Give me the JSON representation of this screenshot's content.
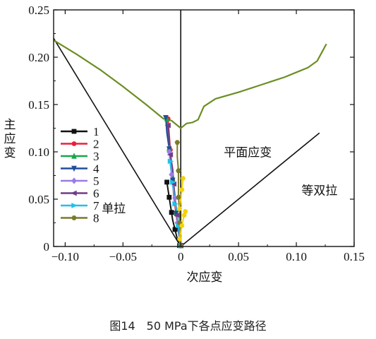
{
  "caption": "图14　50 MPa下各点应变路径",
  "chart_data": {
    "type": "line",
    "xlabel": "次应变",
    "ylabel": "主应变",
    "xlim": [
      -0.11,
      0.15
    ],
    "ylim": [
      0,
      0.25
    ],
    "xticks": [
      -0.1,
      -0.05,
      0,
      0.05,
      0.1,
      0.15
    ],
    "xtick_labels": [
      "−0.10",
      "−0.05",
      "0",
      "0.05",
      "0.10",
      "0.15"
    ],
    "yticks": [
      0,
      0.05,
      0.1,
      0.15,
      0.2,
      0.25
    ],
    "ytick_labels": [
      "0",
      "0.05",
      "0.10",
      "0.15",
      "0.20",
      "0.25"
    ],
    "grid": false,
    "legend_position": "left",
    "annotations": [
      {
        "text": "平面应变",
        "x": 0.058,
        "y": 0.095
      },
      {
        "text": "单拉",
        "x": -0.058,
        "y": 0.036
      },
      {
        "text": "等双拉",
        "x": 0.12,
        "y": 0.055
      }
    ],
    "reference_lines": [
      {
        "role": "uniaxial-tension",
        "color": "#111111",
        "x": [
          -0.11,
          0
        ],
        "y": [
          0.22,
          0
        ]
      },
      {
        "role": "plane-strain",
        "color": "#111111",
        "x": [
          0,
          0
        ],
        "y": [
          0,
          0.25
        ]
      },
      {
        "role": "equibiaxial-tension",
        "color": "#111111",
        "x": [
          0,
          0.12
        ],
        "y": [
          0,
          0.12
        ]
      }
    ],
    "flc": {
      "color": "#6b8e23",
      "x": [
        -0.11,
        -0.09,
        -0.07,
        -0.05,
        -0.03,
        -0.015,
        -0.008,
        -0.003,
        0.0,
        0.005,
        0.01,
        0.015,
        0.02,
        0.03,
        0.05,
        0.07,
        0.09,
        0.1,
        0.11,
        0.118,
        0.122,
        0.126
      ],
      "y": [
        0.218,
        0.203,
        0.187,
        0.169,
        0.15,
        0.135,
        0.133,
        0.128,
        0.125,
        0.13,
        0.131,
        0.134,
        0.148,
        0.156,
        0.163,
        0.171,
        0.179,
        0.184,
        0.189,
        0.196,
        0.205,
        0.214
      ]
    },
    "series": [
      {
        "name": "1",
        "color": "#111111",
        "marker": "square",
        "x": [
          -0.012,
          -0.011,
          -0.01,
          -0.009,
          -0.008,
          -0.007,
          -0.005,
          -0.003,
          -0.001
        ],
        "y": [
          0.068,
          0.06,
          0.052,
          0.044,
          0.036,
          0.028,
          0.018,
          0.008,
          0.001
        ]
      },
      {
        "name": "2",
        "color": "#e8203a",
        "marker": "circle",
        "x": [
          -0.011,
          -0.01,
          -0.009,
          -0.008,
          -0.007,
          -0.006,
          -0.004,
          -0.002,
          0.0
        ],
        "y": [
          0.135,
          0.118,
          0.102,
          0.086,
          0.07,
          0.052,
          0.034,
          0.016,
          0.001
        ]
      },
      {
        "name": "3",
        "color": "#19a64a",
        "marker": "triangle-up",
        "x": [
          -0.012,
          -0.011,
          -0.01,
          -0.008,
          -0.007,
          -0.005,
          -0.004,
          -0.002,
          0.0
        ],
        "y": [
          0.135,
          0.12,
          0.104,
          0.088,
          0.071,
          0.054,
          0.036,
          0.018,
          0.001
        ]
      },
      {
        "name": "4",
        "color": "#1f4e9a",
        "marker": "triangle-down",
        "x": [
          -0.013,
          -0.012,
          -0.01,
          -0.009,
          -0.007,
          -0.005,
          -0.004,
          -0.002,
          0.0
        ],
        "y": [
          0.136,
          0.12,
          0.103,
          0.087,
          0.07,
          0.052,
          0.035,
          0.017,
          0.001
        ]
      },
      {
        "name": "5",
        "color": "#9b7be6",
        "marker": "diamond",
        "x": [
          -0.01,
          -0.009,
          -0.008,
          -0.007,
          -0.005,
          -0.004,
          -0.003,
          -0.001,
          0.0
        ],
        "y": [
          0.1,
          0.088,
          0.076,
          0.064,
          0.051,
          0.038,
          0.025,
          0.012,
          0.001
        ]
      },
      {
        "name": "6",
        "color": "#6f3d86",
        "marker": "triangle-left",
        "x": [
          -0.011,
          -0.01,
          -0.009,
          -0.007,
          -0.006,
          -0.005,
          -0.003,
          -0.002,
          0.0
        ],
        "y": [
          0.128,
          0.113,
          0.097,
          0.082,
          0.066,
          0.05,
          0.033,
          0.016,
          0.001
        ]
      },
      {
        "name": "7",
        "color": "#22c0e8",
        "marker": "triangle-right",
        "x": [
          -0.009,
          -0.008,
          -0.007,
          -0.006,
          -0.005,
          -0.003,
          -0.002,
          -0.001,
          0.0
        ],
        "y": [
          0.09,
          0.079,
          0.068,
          0.056,
          0.045,
          0.034,
          0.022,
          0.011,
          0.001
        ]
      },
      {
        "name": "8",
        "color": "#7a7a2a",
        "marker": "hexagon",
        "x": [
          -0.003,
          -0.003,
          -0.002,
          -0.002,
          -0.002,
          -0.001,
          -0.001,
          0.0,
          0.0
        ],
        "y": [
          0.11,
          0.095,
          0.08,
          0.066,
          0.052,
          0.038,
          0.025,
          0.012,
          0.001
        ]
      },
      {
        "name": "",
        "color": "#f2d20a",
        "marker": "circle",
        "show_in_legend": false,
        "x": [
          -0.001,
          0.0,
          0.001,
          0.002,
          0.003,
          0.004
        ],
        "y": [
          0.008,
          0.015,
          0.022,
          0.028,
          0.033,
          0.037
        ]
      },
      {
        "name": "",
        "color": "#f2d20a",
        "marker": "circle",
        "show_in_legend": false,
        "x": [
          -0.001,
          0.0,
          0.001,
          0.002
        ],
        "y": [
          0.04,
          0.05,
          0.06,
          0.072
        ]
      }
    ]
  }
}
